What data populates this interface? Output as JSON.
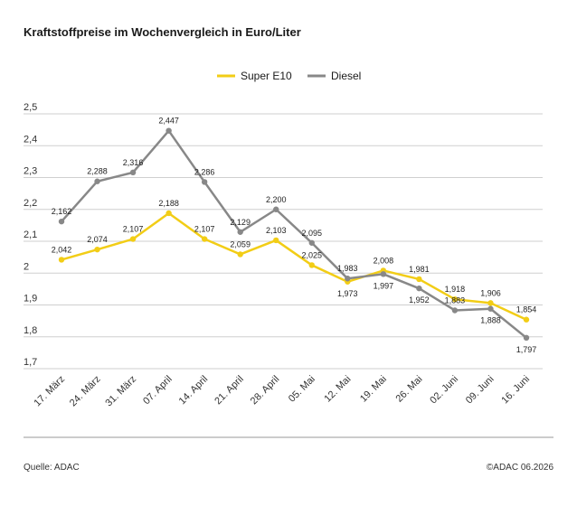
{
  "title": "Kraftstoffpreise im Wochenvergleich in Euro/Liter",
  "footer": {
    "source": "Quelle: ADAC",
    "copyright": "©ADAC 06.2026"
  },
  "chart_data": {
    "type": "line",
    "title": "Kraftstoffpreise im Wochenvergleich in Euro/Liter",
    "categories": [
      "17. März",
      "24. März",
      "31. März",
      "07. April",
      "14. April",
      "21. April",
      "28. April",
      "05. Mai",
      "12. Mai",
      "19. Mai",
      "26. Mai",
      "02. Juni",
      "09. Juni",
      "16. Juni"
    ],
    "ylim": [
      1.7,
      2.5
    ],
    "yticks": [
      1.7,
      1.8,
      1.9,
      2.0,
      2.1,
      2.2,
      2.3,
      2.4,
      2.5
    ],
    "ytick_labels": [
      "1,7",
      "1,8",
      "1,9",
      "2",
      "2,1",
      "2,2",
      "2,3",
      "2,4",
      "2,5"
    ],
    "grid": true,
    "legend_position": "top-right",
    "series": [
      {
        "name": "Super E10",
        "color": "#f2cd16",
        "values": [
          2.042,
          2.074,
          2.107,
          2.188,
          2.107,
          2.059,
          2.103,
          2.025,
          1.973,
          2.008,
          1.981,
          1.918,
          1.906,
          1.854
        ],
        "labels": [
          "2,042",
          "2,074",
          "2,107",
          "2,188",
          "2,107",
          "2,059",
          "2,103",
          "2,025",
          "1,973",
          "2,008",
          "1,981",
          "1,918",
          "1,906",
          "1,854"
        ]
      },
      {
        "name": "Diesel",
        "color": "#888888",
        "values": [
          2.162,
          2.288,
          2.316,
          2.447,
          2.286,
          2.129,
          2.2,
          2.095,
          1.983,
          1.997,
          1.952,
          1.883,
          1.888,
          1.797
        ],
        "labels": [
          "2,162",
          "2,288",
          "2,316",
          "2,447",
          "2,286",
          "2,129",
          "2,200",
          "2,095",
          "1,983",
          "1,997",
          "1,952",
          "1,883",
          "1,888",
          "1,797"
        ]
      }
    ]
  }
}
